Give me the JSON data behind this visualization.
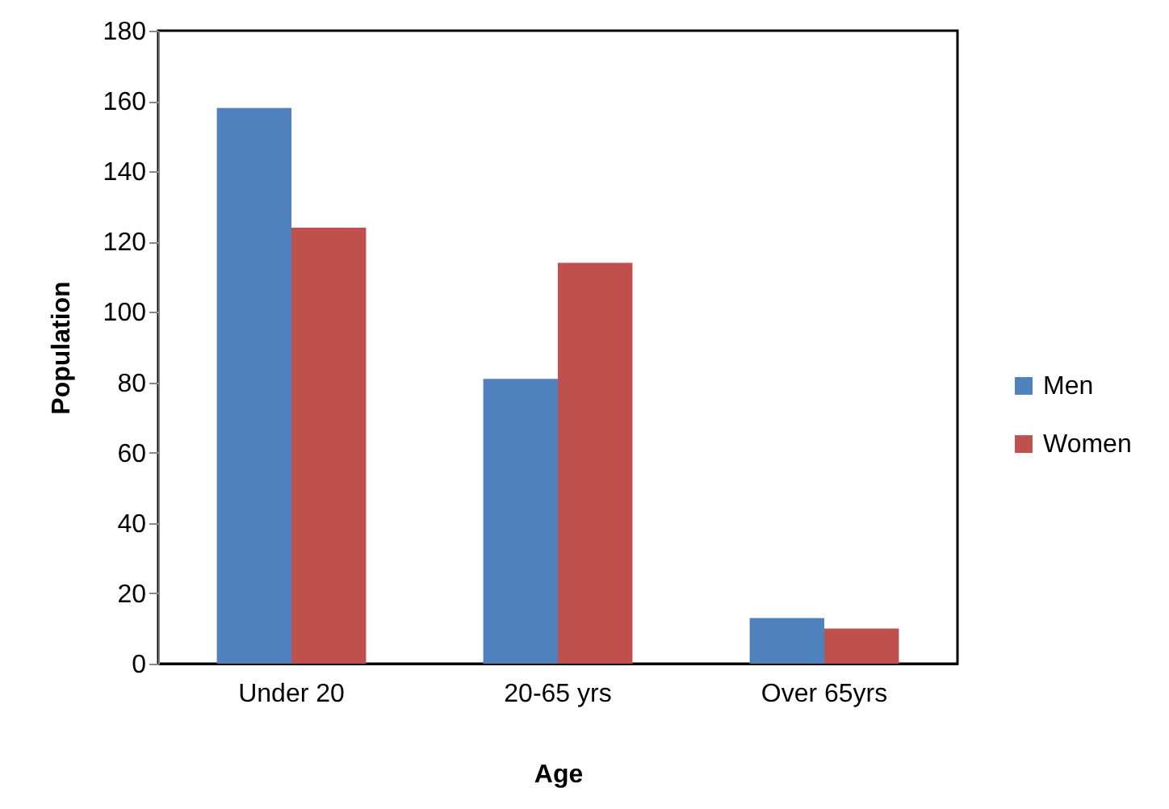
{
  "chart_data": {
    "type": "bar",
    "xlabel": "Age",
    "ylabel": "Population",
    "categories": [
      "Under 20",
      "20-65 yrs",
      "Over 65yrs"
    ],
    "series": [
      {
        "name": "Men",
        "color": "#4f81bd",
        "values": [
          158,
          81,
          13
        ]
      },
      {
        "name": "Women",
        "color": "#c0504d",
        "values": [
          124,
          114,
          10
        ]
      }
    ],
    "ylim": [
      0,
      180
    ],
    "yticks": [
      0,
      20,
      40,
      60,
      80,
      100,
      120,
      140,
      160,
      180
    ],
    "grid": false,
    "legend": "right"
  }
}
